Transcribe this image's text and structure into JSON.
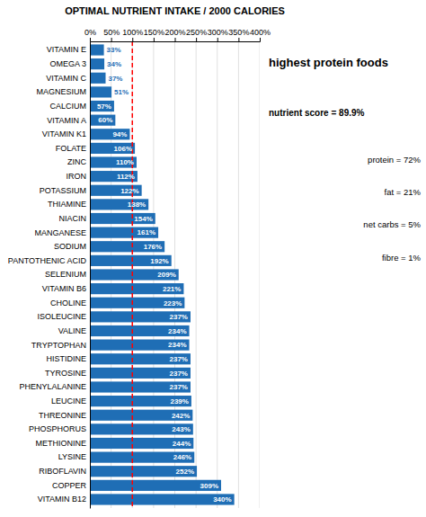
{
  "chart_data": {
    "type": "bar",
    "orientation": "horizontal",
    "title": "OPTIMAL NUTRIENT INTAKE / 2000 CALORIES",
    "categories": [
      "VITAMIN E",
      "OMEGA 3",
      "VITAMIN C",
      "MAGNESIUM",
      "CALCIUM",
      "VITAMIN A",
      "VITAMIN K1",
      "FOLATE",
      "ZINC",
      "IRON",
      "POTASSIUM",
      "THIAMINE",
      "NIACIN",
      "MANGANESE",
      "SODIUM",
      "PANTOTHENIC ACID",
      "SELENIUM",
      "VITAMIN B6",
      "CHOLINE",
      "ISOLEUCINE",
      "VALINE",
      "TRYPTOPHAN",
      "HISTIDINE",
      "TYROSINE",
      "PHENYLALANINE",
      "LEUCINE",
      "THREONINE",
      "PHOSPHORUS",
      "METHIONINE",
      "LYSINE",
      "RIBOFLAVIN",
      "COPPER",
      "VITAMIN B12"
    ],
    "values": [
      33,
      34,
      37,
      51,
      57,
      60,
      94,
      106,
      110,
      112,
      122,
      138,
      154,
      161,
      176,
      192,
      209,
      221,
      223,
      237,
      234,
      234,
      237,
      237,
      237,
      239,
      242,
      243,
      244,
      246,
      252,
      309,
      340
    ],
    "value_labels": [
      "33%",
      "34%",
      "37%",
      "51%",
      "57%",
      "60%",
      "94%",
      "106%",
      "110%",
      "112%",
      "122%",
      "138%",
      "154%",
      "161%",
      "176%",
      "192%",
      "209%",
      "221%",
      "223%",
      "237%",
      "234%",
      "234%",
      "237%",
      "237%",
      "237%",
      "239%",
      "242%",
      "243%",
      "244%",
      "246%",
      "252%",
      "309%",
      "340%"
    ],
    "data_labels": true,
    "color": "#1f6eb5",
    "xlim": [
      0,
      400
    ],
    "xticks": [
      {
        "value": 0,
        "label": "0%"
      },
      {
        "value": 50,
        "label": "50%"
      },
      {
        "value": 100,
        "label": "100%"
      },
      {
        "value": 150,
        "label": "150%"
      },
      {
        "value": 200,
        "label": "200%"
      },
      {
        "value": 250,
        "label": "250%"
      },
      {
        "value": 300,
        "label": "300%"
      },
      {
        "value": 350,
        "label": "350%"
      },
      {
        "value": 400,
        "label": "400%"
      }
    ],
    "grid": true,
    "reference_line": {
      "value": 100,
      "color": "red",
      "line_style": "dashed"
    },
    "annotations": [
      "highest protein foods",
      "nutrient score = 89.9%",
      "protein = 72%",
      "fat = 21%",
      "net carbs = 5%",
      "fibre = 1%"
    ]
  }
}
